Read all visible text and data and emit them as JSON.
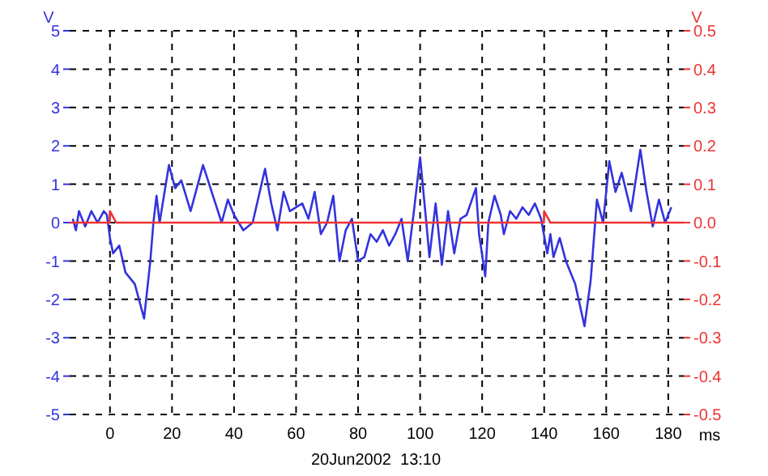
{
  "chart_data": {
    "type": "line",
    "xlabel": "ms",
    "ylabel": "V",
    "y2label": "V",
    "annotations": [
      "20Jun2002  13:10"
    ],
    "xlim": [
      -13,
      185
    ],
    "xticks": [
      0,
      20,
      40,
      60,
      80,
      100,
      120,
      140,
      160,
      180
    ],
    "ylim": [
      -5,
      5
    ],
    "yticks": [
      -5,
      -4,
      -3,
      -2,
      -1,
      0,
      1,
      2,
      3,
      4,
      5
    ],
    "y2lim": [
      -0.5,
      0.5
    ],
    "y2ticks": [
      {
        "value": -0.5,
        "label": "-0.5"
      },
      {
        "value": -0.4,
        "label": "-0.4"
      },
      {
        "value": -0.3,
        "label": "-0.3"
      },
      {
        "value": -0.2,
        "label": "-0.2"
      },
      {
        "value": -0.1,
        "label": "-0.1"
      },
      {
        "value": 0,
        "label": "0.0"
      },
      {
        "value": 0.1,
        "label": "0.1"
      },
      {
        "value": 0.2,
        "label": "0.2"
      },
      {
        "value": 0.3,
        "label": "0.3"
      },
      {
        "value": 0.4,
        "label": "0.4"
      },
      {
        "value": 0.5,
        "label": "0.5"
      }
    ],
    "grid": true,
    "legend": false,
    "marker": "none",
    "line_style": "solid",
    "series": [
      {
        "color": "#3333dd",
        "x": [
          -12,
          -11,
          -10,
          -8,
          -6,
          -4,
          -2,
          -1,
          0,
          1,
          3,
          5,
          8,
          11,
          13,
          14,
          15,
          16,
          19,
          21,
          23,
          26,
          30,
          32,
          36,
          38,
          40,
          43,
          46,
          50,
          52,
          54,
          56,
          58,
          62,
          64,
          66,
          68,
          70,
          72,
          74,
          76,
          78,
          80,
          82,
          84,
          86,
          88,
          90,
          92,
          94,
          96,
          98,
          100,
          102,
          103,
          105,
          107,
          109,
          111,
          113,
          115,
          118,
          119,
          121,
          122,
          124,
          126,
          127,
          129,
          131,
          133,
          135,
          137,
          139,
          141,
          142,
          143,
          145,
          147,
          150,
          153,
          155,
          157,
          159,
          161,
          163,
          165,
          168,
          171,
          173,
          175,
          177,
          179,
          181
        ],
        "values": [
          0.1,
          -0.2,
          0.3,
          -0.1,
          0.3,
          0,
          0.3,
          0.2,
          -0.4,
          -0.8,
          -0.6,
          -1.3,
          -1.6,
          -2.5,
          -1,
          0,
          0.7,
          0,
          1.5,
          0.9,
          1.1,
          0.3,
          1.5,
          1,
          0,
          0.6,
          0.2,
          -0.2,
          0,
          1.4,
          0.5,
          -0.2,
          0.8,
          0.3,
          0.5,
          0.1,
          0.8,
          -0.3,
          0,
          0.7,
          -1,
          -0.2,
          0.1,
          -1,
          -0.9,
          -0.3,
          -0.5,
          -0.2,
          -0.6,
          -0.3,
          0.1,
          -1,
          0.3,
          1.7,
          0,
          -0.9,
          0.5,
          -1.1,
          0.3,
          -0.8,
          0.1,
          0.2,
          0.9,
          -0.3,
          -1.4,
          0,
          0.7,
          0.2,
          -0.3,
          0.3,
          0.1,
          0.4,
          0.2,
          0.5,
          0.1,
          -0.8,
          -0.3,
          -0.9,
          -0.4,
          -1,
          -1.6,
          -2.7,
          -1.5,
          0.6,
          0,
          1.6,
          0.8,
          1.3,
          0.3,
          1.9,
          0.8,
          -0.1,
          0.6,
          0,
          0.4
        ]
      },
      {
        "color": "#ee3333",
        "axis": "y2",
        "x": [
          -13,
          -0.1,
          0,
          2,
          139.9,
          140,
          142,
          185
        ],
        "values": [
          0,
          0,
          0.03,
          0,
          0,
          0.03,
          0,
          0
        ]
      }
    ]
  }
}
